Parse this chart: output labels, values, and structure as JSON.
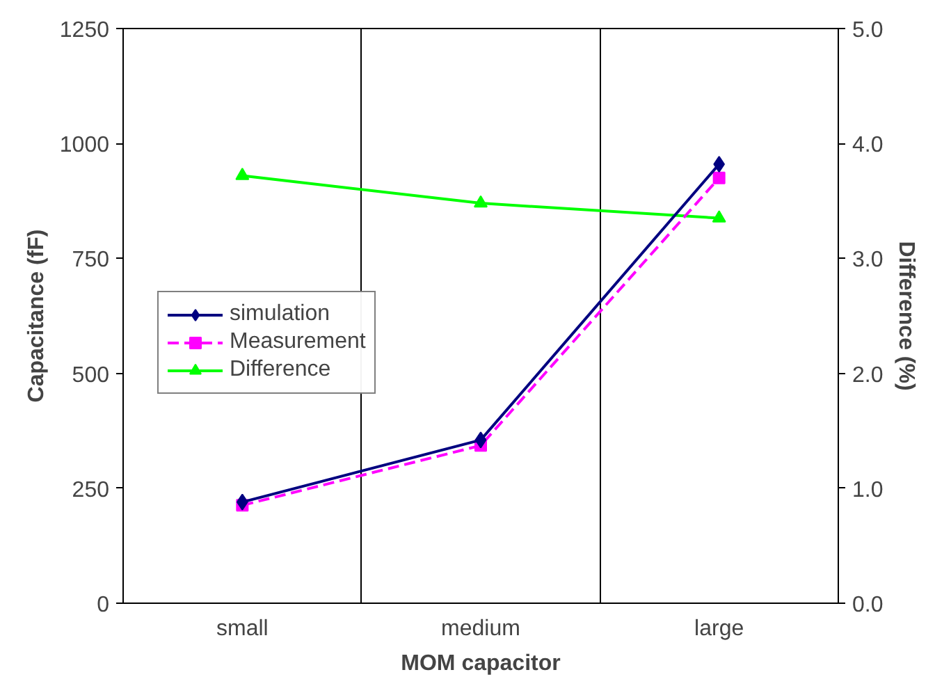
{
  "chart_data": {
    "type": "line",
    "xlabel": "MOM capacitor",
    "ylabel": "Capacitance (fF)",
    "y2label": "Difference (%)",
    "categories": [
      "small",
      "medium",
      "large"
    ],
    "series": [
      {
        "name": "simulation",
        "color": "#000080",
        "values": [
          220,
          355,
          955
        ],
        "marker": "diamond",
        "line_style": "solid"
      },
      {
        "name": "Measurement",
        "color": "#ff00ff",
        "values": [
          213,
          343,
          925
        ],
        "marker": "square",
        "line_style": "dashed"
      },
      {
        "name": "Difference",
        "color": "#00ff00",
        "values": [
          3.72,
          3.48,
          3.35
        ],
        "marker": "triangle",
        "line_style": "solid",
        "axis": "y2"
      }
    ],
    "ylim": [
      0,
      1250
    ],
    "yticks": [
      0,
      250,
      500,
      750,
      1000,
      1250
    ],
    "y2lim": [
      0,
      5
    ],
    "y2ticks": [
      {
        "value": 0,
        "label": "0.0"
      },
      {
        "value": 1,
        "label": "1.0"
      },
      {
        "value": 2,
        "label": "2.0"
      },
      {
        "value": 3,
        "label": "3.0"
      },
      {
        "value": 4,
        "label": "4.0"
      },
      {
        "value": 5,
        "label": "5.0"
      }
    ],
    "grid": "x",
    "legend": "left"
  }
}
